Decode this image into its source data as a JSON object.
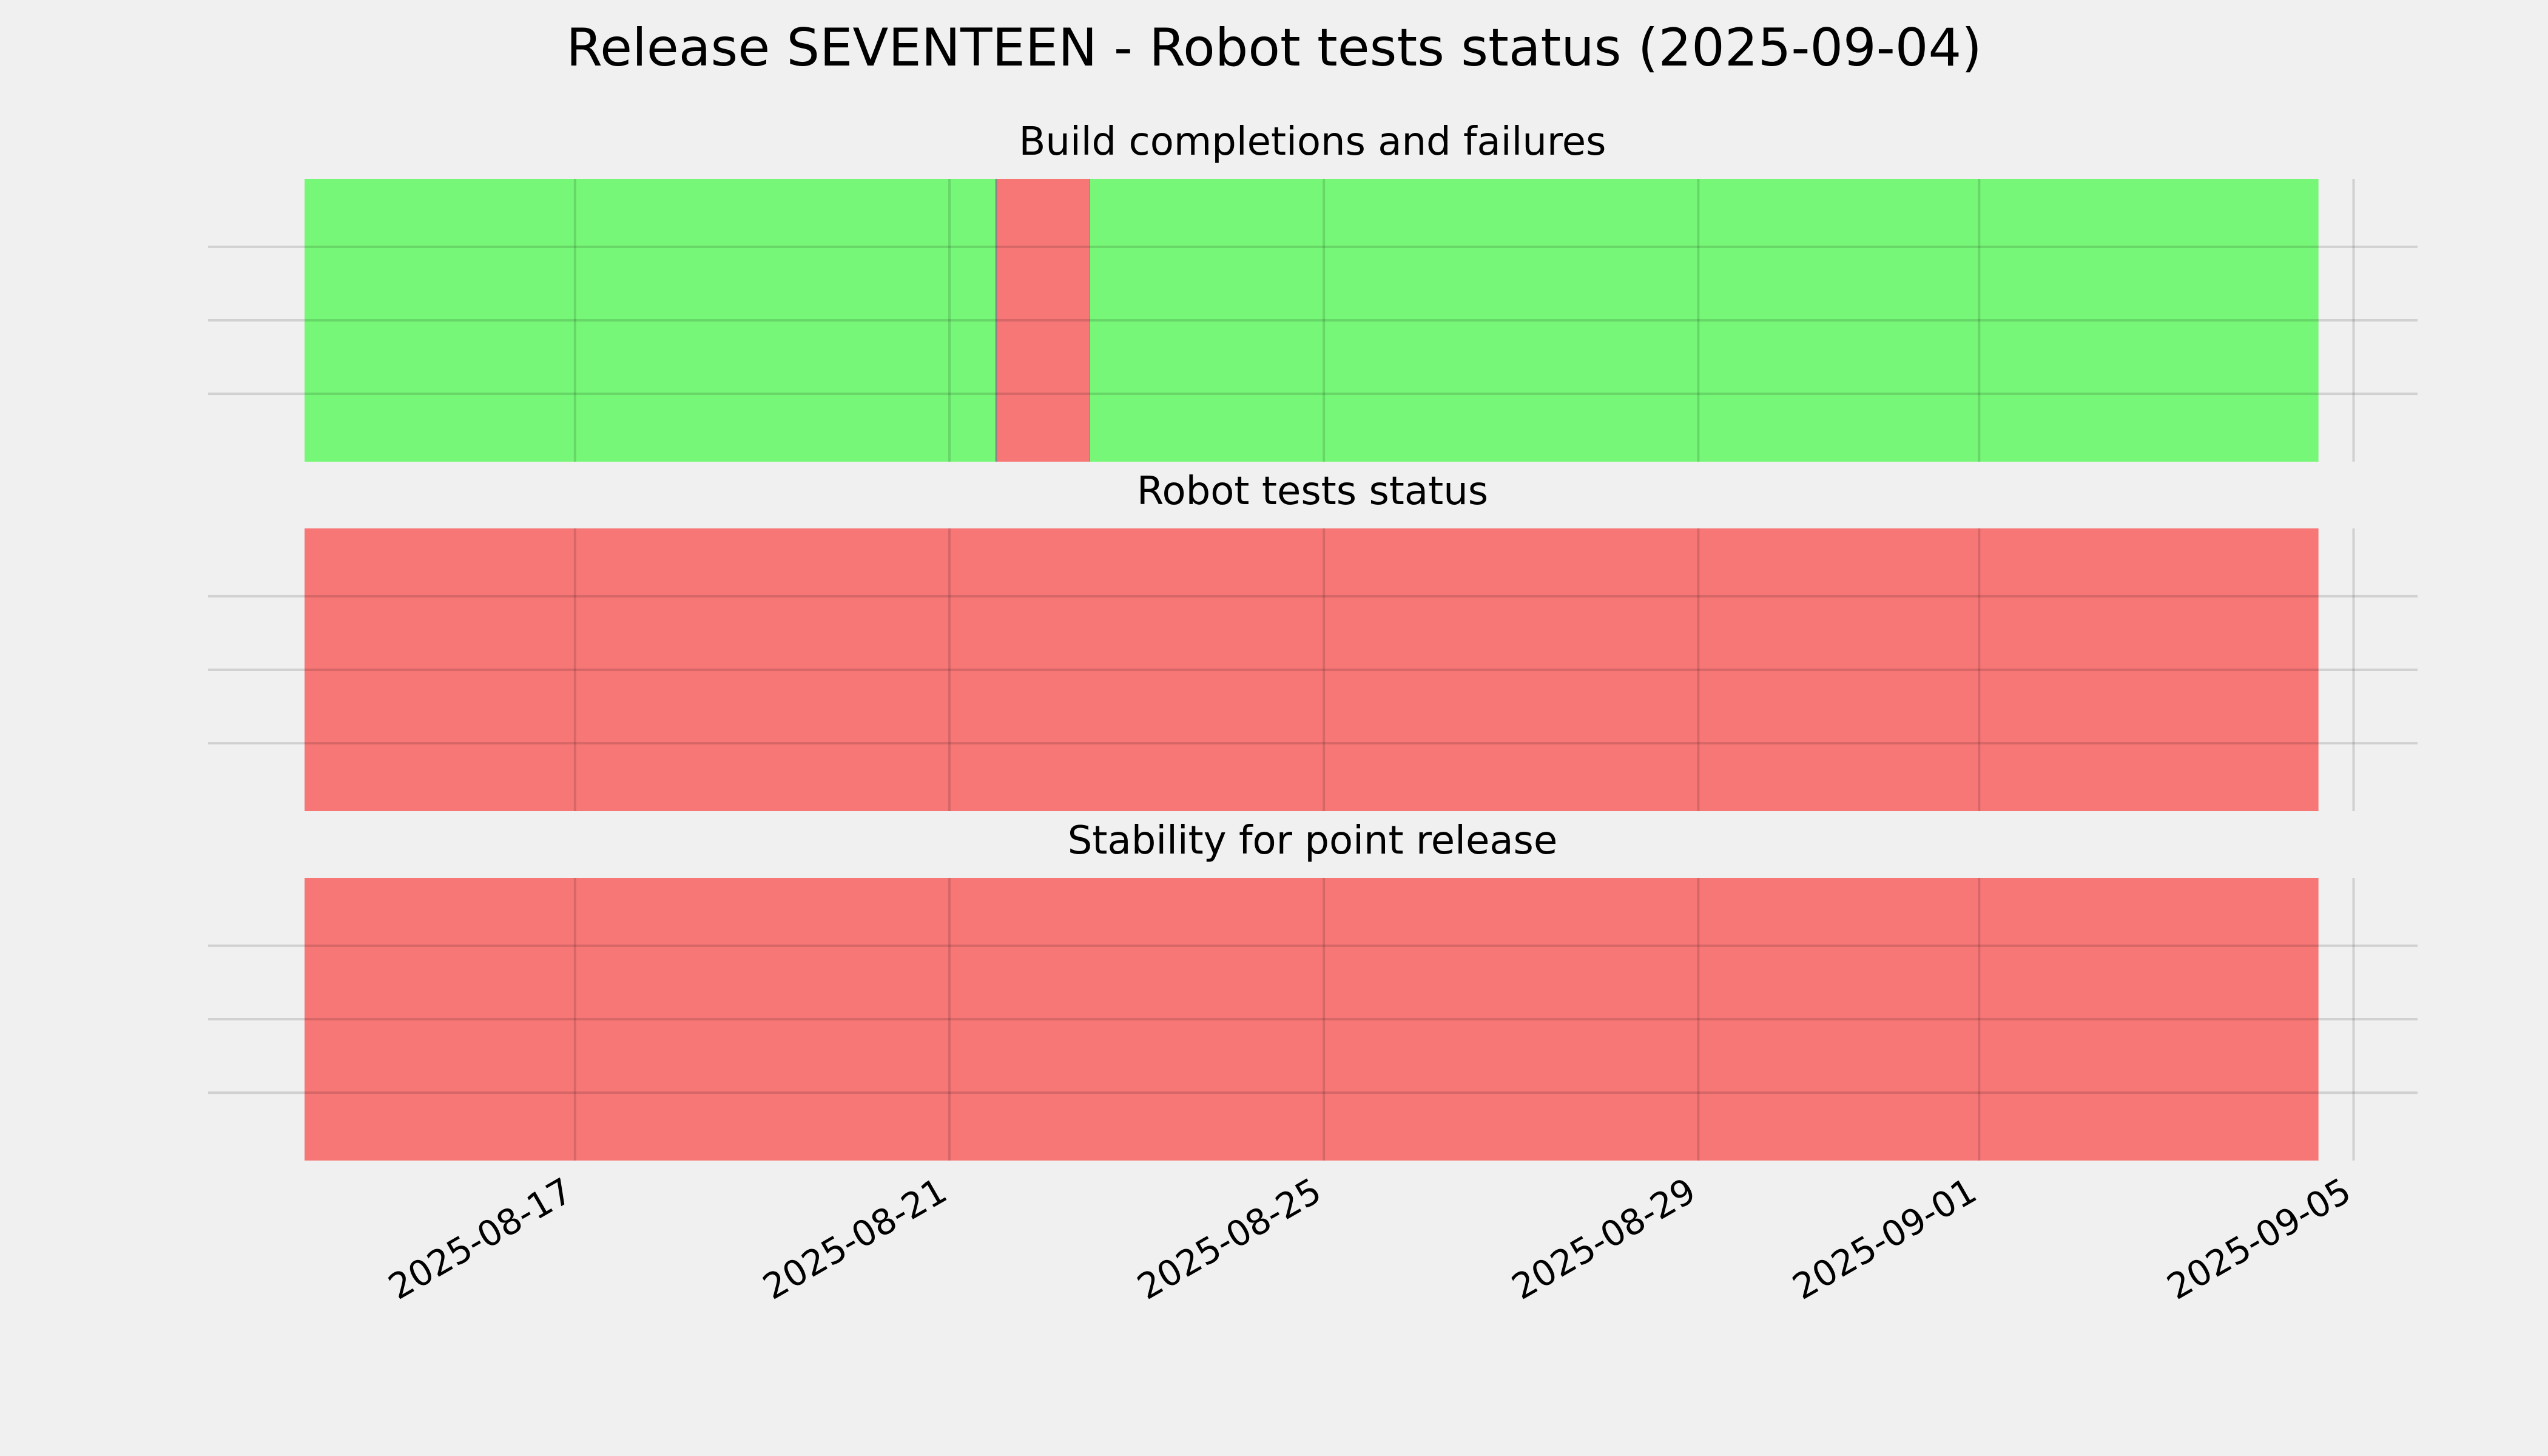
{
  "page": {
    "background": "#f0f0f0"
  },
  "chart_data": {
    "type": "status-timeline",
    "title": "Release SEVENTEEN - Robot tests status (2025-09-04)",
    "x_axis": {
      "type": "date",
      "range": [
        "2025-08-14",
        "2025-09-05"
      ],
      "ticks": [
        "2025-08-17",
        "2025-08-21",
        "2025-08-25",
        "2025-08-29",
        "2025-09-01",
        "2025-09-05"
      ]
    },
    "grid": true,
    "colors": {
      "pass": "#77f777",
      "fail": "#f77777",
      "grid": "#cccccc"
    },
    "panels": [
      {
        "title": "Build completions and failures",
        "segments": [
          {
            "start": "2025-08-14",
            "end": "2025-08-21T12:00",
            "status": "pass"
          },
          {
            "start": "2025-08-21T12:00",
            "end": "2025-08-22T12:00",
            "status": "fail"
          },
          {
            "start": "2025-08-22T12:00",
            "end": "2025-09-04T15:00",
            "status": "pass"
          }
        ]
      },
      {
        "title": "Robot tests status",
        "segments": [
          {
            "start": "2025-08-14",
            "end": "2025-09-04T15:00",
            "status": "fail"
          }
        ]
      },
      {
        "title": "Stability for point release",
        "segments": [
          {
            "start": "2025-08-14",
            "end": "2025-09-04T15:00",
            "status": "fail"
          }
        ]
      }
    ]
  }
}
